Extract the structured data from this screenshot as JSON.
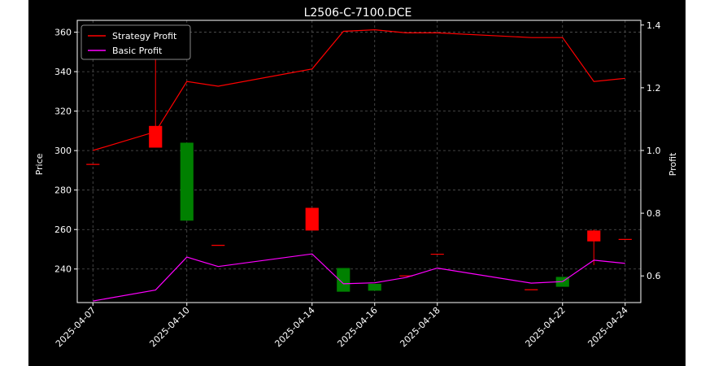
{
  "chart_data": {
    "type": "candlestick",
    "title": "L2506-C-7100.DCE",
    "ylabel_left": "Price",
    "ylabel_right": "Profit",
    "ylim_left": [
      223,
      366
    ],
    "ylim_right": [
      0.515,
      1.415
    ],
    "left_ticks": [
      "240",
      "260",
      "280",
      "300",
      "320",
      "340",
      "360"
    ],
    "right_ticks": [
      "0.6",
      "0.8",
      "1.0",
      "1.2",
      "1.4"
    ],
    "x_tick_labels": [
      "2025-04-07",
      "2025-04-10",
      "2025-04-14",
      "2025-04-16",
      "2025-04-18",
      "2025-04-22",
      "2025-04-24"
    ],
    "grid": true,
    "legend_position": "upper-left",
    "legend": [
      "Strategy Profit",
      "Basic Profit"
    ],
    "candles": [
      {
        "date": "2025-04-07",
        "open": 293,
        "high": 293,
        "low": 293,
        "close": 293
      },
      {
        "date": "2025-04-09",
        "open": 301.5,
        "high": 362,
        "low": 301.5,
        "close": 312.5
      },
      {
        "date": "2025-04-10",
        "open": 304,
        "high": 304,
        "low": 264.5,
        "close": 264.5
      },
      {
        "date": "2025-04-11",
        "open": 252,
        "high": 252,
        "low": 252,
        "close": 252
      },
      {
        "date": "2025-04-14",
        "open": 259.5,
        "high": 271,
        "low": 259.5,
        "close": 271
      },
      {
        "date": "2025-04-15",
        "open": 240.5,
        "high": 240.5,
        "low": 228.5,
        "close": 228.5
      },
      {
        "date": "2025-04-16",
        "open": 232.5,
        "high": 232.5,
        "low": 229,
        "close": 229
      },
      {
        "date": "2025-04-17",
        "open": 236.5,
        "high": 236.5,
        "low": 236.5,
        "close": 236.5
      },
      {
        "date": "2025-04-18",
        "open": 247.5,
        "high": 247.5,
        "low": 247.5,
        "close": 247.5
      },
      {
        "date": "2025-04-21",
        "open": 229.5,
        "high": 229.5,
        "low": 229.5,
        "close": 229.5
      },
      {
        "date": "2025-04-22",
        "open": 236,
        "high": 236,
        "low": 231,
        "close": 231
      },
      {
        "date": "2025-04-23",
        "open": 254,
        "high": 260,
        "low": 242,
        "close": 259.5
      },
      {
        "date": "2025-04-24",
        "open": 255,
        "high": 255,
        "low": 255,
        "close": 255
      }
    ],
    "series": [
      {
        "name": "Strategy Profit",
        "color": "#ff0000",
        "axis": "right",
        "values": [
          1.0,
          1.06,
          1.22,
          1.205,
          1.26,
          1.38,
          1.385,
          1.375,
          1.375,
          1.36,
          1.36,
          1.22,
          1.23
        ]
      },
      {
        "name": "Basic Profit",
        "color": "#ff00ff",
        "axis": "right",
        "values": [
          0.52,
          0.555,
          0.66,
          0.63,
          0.67,
          0.575,
          0.578,
          0.595,
          0.625,
          0.577,
          0.582,
          0.65,
          0.64
        ]
      }
    ],
    "candle_colors": {
      "up": "#ff0000",
      "down": "#008000"
    }
  }
}
